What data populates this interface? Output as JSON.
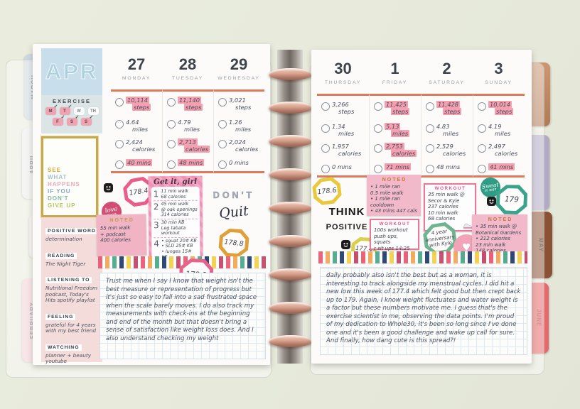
{
  "tabs": {
    "left": [
      "MARCH",
      "APRIL",
      "JANUARY",
      "FEBRUARY"
    ],
    "right": [
      "MAY",
      "JUNE"
    ]
  },
  "page_left": {
    "month_label": "APR",
    "exercise": {
      "title": "EXERCISE",
      "days": [
        {
          "label": "M",
          "checked": true
        },
        {
          "label": "T",
          "checked": true
        },
        {
          "label": "W",
          "checked": false
        },
        {
          "label": "TH",
          "checked": false
        },
        {
          "label": "F",
          "checked": true
        },
        {
          "label": "S",
          "checked": true
        },
        {
          "label": "S",
          "checked": true
        }
      ]
    },
    "quote_sticker": [
      {
        "text": "SEE",
        "color": "#d4aa3e"
      },
      {
        "text": "WHAT",
        "color": "#a9bfcb"
      },
      {
        "text": "HAPPENS",
        "color": "#e6a9bb"
      },
      {
        "text": "IF YOU",
        "color": "#8aa7c6"
      },
      {
        "text": "DON'T",
        "color": "#83b8a6"
      },
      {
        "text": "GIVE UP",
        "color": "#b8c35e"
      }
    ],
    "sidebar": [
      {
        "label": "POSITIVE WORD",
        "value": "determination"
      },
      {
        "label": "READING",
        "value": "The Night Tiger"
      },
      {
        "label": "LISTENING TO",
        "value": "Nutritional Freedom podcast, Today's Hits spotify playlist"
      },
      {
        "label": "FEELING",
        "value": "grateful for 4 years with my best friend"
      },
      {
        "label": "WATCHING",
        "value": "planner + beauty youtube"
      }
    ],
    "days": [
      {
        "date": "27",
        "name": "MONDAY",
        "stats": [
          {
            "lines": [
              "10,114",
              "steps"
            ],
            "hl": true
          },
          {
            "lines": [
              "4.64",
              "miles"
            ],
            "hl": false
          },
          {
            "lines": [
              "2,424",
              "calories"
            ],
            "hl": false
          },
          {
            "lines": [
              "40 mins"
            ],
            "hl": true
          }
        ]
      },
      {
        "date": "28",
        "name": "TUESDAY",
        "stats": [
          {
            "lines": [
              "11,140",
              "steps"
            ],
            "hl": true
          },
          {
            "lines": [
              "4.79",
              "miles"
            ],
            "hl": false
          },
          {
            "lines": [
              "2,713",
              "calories"
            ],
            "hl": true
          },
          {
            "lines": [
              "48 mins"
            ],
            "hl": true
          }
        ]
      },
      {
        "date": "29",
        "name": "WEDNESDAY",
        "stats": [
          {
            "lines": [
              "3,021",
              "steps"
            ],
            "hl": false
          },
          {
            "lines": [
              "1.26",
              "miles"
            ],
            "hl": false
          },
          {
            "lines": [
              "2,024",
              "calories"
            ],
            "hl": false
          },
          {
            "lines": [
              "0 mins"
            ],
            "hl": false
          }
        ]
      }
    ],
    "stickers": {
      "weight_1": "178.4",
      "weight_2": "178.8",
      "weight_3": "179.2",
      "love_line1": "love",
      "love_line2": "THIS",
      "noted_title": "NOTED",
      "noted_lines": [
        "55 min walk",
        "+ podcast",
        "400 calories"
      ],
      "girl_title": "Get it, girl",
      "girl_items": [
        {
          "num": "1",
          "lines": [
            "11 min walk",
            "68 calories"
          ]
        },
        {
          "num": "2",
          "lines": [
            "45 min walk",
            "@ oak openings",
            "314 calories"
          ]
        },
        {
          "num": "3",
          "lines": [
            "30 min KB",
            "Leg tabata",
            "workout"
          ]
        },
        {
          "num": "4",
          "lines": [
            "• squat 20# KB",
            "• SLD 25# KB",
            "• lunges 15# KB"
          ]
        }
      ],
      "dont": "DON'T",
      "quit": "Quit"
    },
    "journal": "Trust me when I say I know that weight isn't the best measure or representation of progress but it's just so easy to fall into a sad frustrated space when the scale barely moves. I do also track my measurements with check-ins at the beginning and end of the month but that doesn't bring a sense of satisfaction like weight loss does. And I also understand checking my weight"
  },
  "page_right": {
    "days": [
      {
        "date": "30",
        "name": "THURSDAY",
        "stats": [
          {
            "lines": [
              "3,266",
              "steps"
            ],
            "hl": false
          },
          {
            "lines": [
              "1.34",
              "miles"
            ],
            "hl": false
          },
          {
            "lines": [
              "1,957",
              "calories"
            ],
            "hl": false
          },
          {
            "lines": [
              "0 mins"
            ],
            "hl": false
          }
        ]
      },
      {
        "date": "1",
        "name": "FRIDAY",
        "stats": [
          {
            "lines": [
              "11,425",
              "steps"
            ],
            "hl": true
          },
          {
            "lines": [
              "5.13",
              "miles"
            ],
            "hl": true
          },
          {
            "lines": [
              "2,753",
              "calories"
            ],
            "hl": true
          },
          {
            "lines": [
              "71 mins"
            ],
            "hl": true
          }
        ]
      },
      {
        "date": "2",
        "name": "SATURDAY",
        "stats": [
          {
            "lines": [
              "11,428",
              "steps"
            ],
            "hl": true
          },
          {
            "lines": [
              "4.83",
              "miles"
            ],
            "hl": false
          },
          {
            "lines": [
              "2,529",
              "calories"
            ],
            "hl": false
          },
          {
            "lines": [
              "48 mins"
            ],
            "hl": false
          }
        ]
      },
      {
        "date": "3",
        "name": "SUNDAY",
        "stats": [
          {
            "lines": [
              "10,014",
              "steps"
            ],
            "hl": true
          },
          {
            "lines": [
              "4.19",
              "miles"
            ],
            "hl": false
          },
          {
            "lines": [
              "2,497",
              "calories"
            ],
            "hl": false
          },
          {
            "lines": [
              "41 mins"
            ],
            "hl": true
          }
        ]
      }
    ],
    "stickers": {
      "weight_1": "178.6",
      "weight_2": "177.4",
      "weight_3": "179",
      "think": "THINK",
      "positive": "POSITIVE",
      "noted1_title": "NOTED",
      "noted1_lines": [
        "• 1 mile ran",
        "0.5 mile walk",
        "• 1 mile ran",
        "cooldown",
        "• 43 mins 447 cals"
      ],
      "workout1_title": "WORKOUT",
      "workout1_lines": [
        "100s workout",
        "push ups, squats",
        "r sit ups 14:25"
      ],
      "workout1_caption": "147 calories",
      "workout2_title": "WORKOUT",
      "workout2_lines": [
        "35 min walk @",
        "Secor & Kyle",
        "237 calories",
        "10 min walk",
        "68 calories"
      ],
      "anniv_lines": [
        "4 year",
        "anniversary",
        "with Kyle"
      ],
      "sweat_line1": "Sweat",
      "sweat_line2": "IT OUT",
      "noted2_title": "NOTED",
      "noted2_lines": [
        "• 35 min walk @",
        "Botanical Gardens",
        "• 212 calories",
        "23 min walk",
        "148 calories"
      ],
      "heart": "♥"
    },
    "journal": "daily probably also isn't the best but as a woman, it is interesting to track alongside my menstrual cycles. I did hit a new low this week of 177.4 which felt good but then crept back up to 179. Again, I know weight fluctuates and water weight is a factor but these numbers motivate me. I guess that's the exercise scientist in me, observing the data points. I'm proud of my dedication to Whole30, it's been so long since I've done one and it's been a good challenge and wake up call for sure. And finally, how dang cute is this spread?!"
  }
}
